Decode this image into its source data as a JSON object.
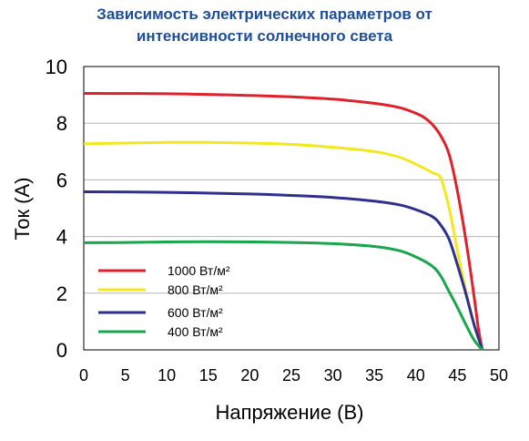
{
  "chart_data": {
    "type": "line",
    "title_lines": [
      "Зависимость электрических параметров от",
      "интенсивности солнечного света"
    ],
    "xlabel": "Напряжение (В)",
    "ylabel": "Ток (А)",
    "xlim": [
      0,
      50
    ],
    "ylim": [
      0,
      10
    ],
    "x_ticks": [
      0,
      5,
      10,
      15,
      20,
      25,
      30,
      35,
      40,
      45,
      50
    ],
    "y_ticks": [
      0,
      2,
      4,
      6,
      8,
      10
    ],
    "grid": "horizontal",
    "legend_position": "bottom-left",
    "series": [
      {
        "name": "1000 Вт/м²",
        "color": "#e0202a",
        "points": [
          [
            0,
            9.05
          ],
          [
            10,
            9.04
          ],
          [
            20,
            8.98
          ],
          [
            25,
            8.93
          ],
          [
            30,
            8.85
          ],
          [
            35,
            8.7
          ],
          [
            38,
            8.55
          ],
          [
            40,
            8.35
          ],
          [
            41,
            8.2
          ],
          [
            42,
            7.95
          ],
          [
            43,
            7.55
          ],
          [
            44,
            6.9
          ],
          [
            45,
            5.6
          ],
          [
            46,
            3.9
          ],
          [
            47,
            1.9
          ],
          [
            47.5,
            0.8
          ],
          [
            48,
            0
          ]
        ]
      },
      {
        "name": "800 Вт/м²",
        "color": "#f2e81e",
        "points": [
          [
            0,
            7.27
          ],
          [
            5,
            7.3
          ],
          [
            10,
            7.32
          ],
          [
            15,
            7.32
          ],
          [
            20,
            7.3
          ],
          [
            25,
            7.25
          ],
          [
            30,
            7.15
          ],
          [
            35,
            7.0
          ],
          [
            38,
            6.8
          ],
          [
            40,
            6.55
          ],
          [
            42,
            6.25
          ],
          [
            43,
            6.05
          ],
          [
            44,
            5.0
          ],
          [
            45,
            3.5
          ],
          [
            46,
            2.1
          ],
          [
            47,
            0.9
          ],
          [
            48,
            0
          ]
        ]
      },
      {
        "name": "600 Вт/м²",
        "color": "#2e2f8f",
        "points": [
          [
            0,
            5.58
          ],
          [
            10,
            5.56
          ],
          [
            20,
            5.5
          ],
          [
            25,
            5.45
          ],
          [
            30,
            5.38
          ],
          [
            35,
            5.25
          ],
          [
            38,
            5.12
          ],
          [
            40,
            4.95
          ],
          [
            42,
            4.7
          ],
          [
            43,
            4.4
          ],
          [
            44,
            3.9
          ],
          [
            45,
            3.0
          ],
          [
            46,
            2.0
          ],
          [
            47,
            0.9
          ],
          [
            48,
            0
          ]
        ]
      },
      {
        "name": "400 Вт/м²",
        "color": "#1aa64c",
        "points": [
          [
            0,
            3.78
          ],
          [
            5,
            3.79
          ],
          [
            10,
            3.81
          ],
          [
            15,
            3.82
          ],
          [
            20,
            3.81
          ],
          [
            25,
            3.79
          ],
          [
            30,
            3.75
          ],
          [
            35,
            3.65
          ],
          [
            38,
            3.5
          ],
          [
            40,
            3.28
          ],
          [
            42,
            2.95
          ],
          [
            43,
            2.6
          ],
          [
            44,
            2.05
          ],
          [
            45,
            1.5
          ],
          [
            46,
            0.9
          ],
          [
            47,
            0.35
          ],
          [
            48,
            0
          ]
        ]
      }
    ]
  }
}
